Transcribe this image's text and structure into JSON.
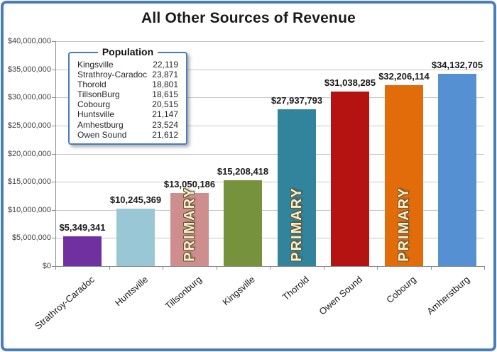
{
  "chart_data": {
    "type": "bar",
    "title": "All Other Sources of Revenue",
    "categories": [
      "Strathroy-Caradoc",
      "Huntsville",
      "Tillsonburg",
      "Kingsville",
      "Thorold",
      "Owen Sound",
      "Cobourg",
      "Amherstburg"
    ],
    "values": [
      5349341,
      10245369,
      13050186,
      15208418,
      27937793,
      31038285,
      32206114,
      34132705
    ],
    "labels": [
      "$5,349,341",
      "$10,245,369",
      "$13,050,186",
      "$15,208,418",
      "$27,937,793",
      "$31,038,285",
      "$32,206,114",
      "$34,132,705"
    ],
    "bar_colors": [
      "#7030A0",
      "#99C7D6",
      "#CE8E8E",
      "#76923C",
      "#31849B",
      "#B51312",
      "#E36C0A",
      "#5590D2"
    ],
    "primary_overlay": [
      false,
      false,
      true,
      false,
      true,
      false,
      true,
      false
    ],
    "primary_label": "PRIMARY",
    "xlabel": "",
    "ylabel": "",
    "ylim": [
      0,
      40000000
    ],
    "ytick_step": 5000000,
    "ytick_labels": [
      "$0",
      "$5,000,000",
      "$10,000,000",
      "$15,000,000",
      "$20,000,000",
      "$25,000,000",
      "$30,000,000",
      "$35,000,000",
      "$40,000,000"
    ],
    "grid": true,
    "legend_position": "upper-left-inside"
  },
  "legend": {
    "title": "Population",
    "rows": [
      {
        "name": "Kingsville",
        "value": "22,119"
      },
      {
        "name": "Strathroy-Caradoc",
        "value": "23,871"
      },
      {
        "name": "Thorold",
        "value": "18,801"
      },
      {
        "name": "TillsonBurg",
        "value": "18,615"
      },
      {
        "name": "Cobourg",
        "value": "20,515"
      },
      {
        "name": "Huntsville",
        "value": "21,147"
      },
      {
        "name": "Amhestburg",
        "value": "23,524"
      },
      {
        "name": "Owen Sound",
        "value": "21,612"
      }
    ]
  },
  "colors": {
    "frame": "#4A7EBB",
    "gridline": "#C6C6C6",
    "axis": "#8C8C8C",
    "primary_text": "#F5F1C9",
    "primary_outline": "#6B5638"
  }
}
